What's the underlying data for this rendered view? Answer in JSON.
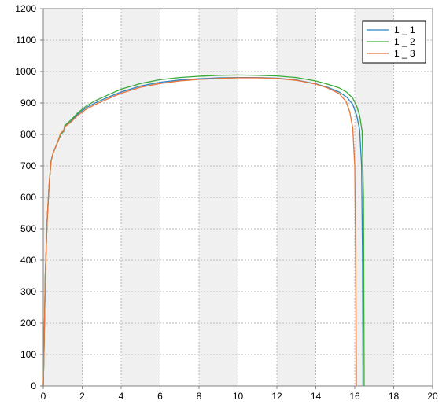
{
  "chart_data": {
    "type": "line",
    "title": "",
    "xlabel": "",
    "ylabel": "",
    "xlim": [
      0,
      20
    ],
    "ylim": [
      0,
      1200
    ],
    "x_ticks": [
      "0",
      "2",
      "4",
      "6",
      "8",
      "10",
      "12",
      "14",
      "16",
      "18",
      "20"
    ],
    "y_ticks": [
      "0",
      "100",
      "200",
      "300",
      "400",
      "500",
      "600",
      "700",
      "800",
      "900",
      "1000",
      "1100",
      "1200"
    ],
    "grid": true,
    "alternating_bands": true,
    "band_color": "#f0f0f0",
    "grid_color": "#b8b8b8",
    "legend_position": "top-right",
    "series": [
      {
        "name": "1 _ 1",
        "color": "#2e86c1",
        "x": [
          0,
          0.05,
          0.1,
          0.2,
          0.3,
          0.4,
          0.5,
          0.7,
          0.9,
          1.05,
          1.1,
          1.4,
          1.8,
          2.2,
          2.7,
          3.2,
          4,
          5,
          6,
          7,
          8,
          9,
          10,
          11,
          12,
          13,
          14,
          14.6,
          15.2,
          15.6,
          15.9,
          16.1,
          16.25,
          16.35,
          16.4,
          16.42,
          16.42
        ],
        "y": [
          0,
          150,
          350,
          530,
          640,
          715,
          740,
          770,
          800,
          810,
          825,
          840,
          866,
          885,
          901,
          915,
          935,
          954,
          966,
          973,
          977,
          980,
          981,
          981,
          979,
          973,
          961,
          950,
          935,
          918,
          895,
          860,
          815,
          700,
          400,
          50,
          0
        ]
      },
      {
        "name": "1 _ 2",
        "color": "#3aaa35",
        "x": [
          0,
          0.05,
          0.1,
          0.2,
          0.3,
          0.4,
          0.5,
          0.7,
          0.9,
          1.05,
          1.1,
          1.4,
          1.8,
          2.2,
          2.7,
          3.2,
          4,
          5,
          6,
          7,
          8,
          9,
          10,
          11,
          12,
          13,
          14,
          14.6,
          15.2,
          15.6,
          15.9,
          16.1,
          16.25,
          16.38,
          16.45,
          16.48,
          16.48
        ],
        "y": [
          0,
          150,
          350,
          530,
          640,
          715,
          740,
          770,
          800,
          812,
          828,
          845,
          870,
          890,
          908,
          922,
          944,
          962,
          974,
          981,
          985,
          988,
          989,
          988,
          986,
          981,
          970,
          960,
          948,
          934,
          915,
          890,
          860,
          810,
          600,
          50,
          0
        ]
      },
      {
        "name": "1 _ 3",
        "color": "#e8743b",
        "x": [
          0,
          0.05,
          0.1,
          0.2,
          0.3,
          0.4,
          0.5,
          0.7,
          0.9,
          1.05,
          1.1,
          1.4,
          1.8,
          2.2,
          2.7,
          3.2,
          4,
          5,
          6,
          7,
          8,
          9,
          10,
          11,
          12,
          13,
          14,
          14.6,
          15.2,
          15.55,
          15.75,
          15.9,
          16.0,
          16.05,
          16.08,
          16.08
        ],
        "y": [
          0,
          150,
          350,
          530,
          640,
          715,
          740,
          770,
          805,
          812,
          824,
          838,
          862,
          880,
          896,
          910,
          931,
          950,
          962,
          970,
          975,
          978,
          980,
          980,
          978,
          972,
          960,
          948,
          930,
          905,
          870,
          820,
          700,
          400,
          50,
          0
        ]
      }
    ]
  }
}
